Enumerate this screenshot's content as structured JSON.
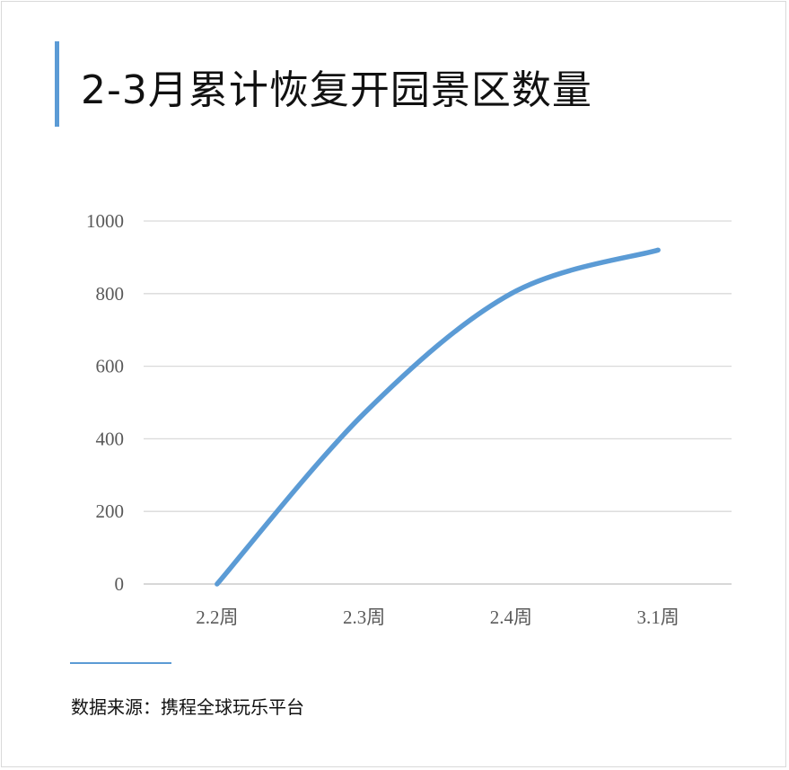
{
  "title": "2-3月累计恢复开园景区数量",
  "source": "数据来源：携程全球玩乐平台",
  "colors": {
    "accent": "#5b9bd5",
    "grid": "#d9d9d9",
    "tick": "#595959"
  },
  "chart_data": {
    "type": "line",
    "categories": [
      "2.2周",
      "2.3周",
      "2.4周",
      "3.1周"
    ],
    "series": [
      {
        "values": [
          0,
          470,
          800,
          920
        ]
      }
    ],
    "ylim": [
      0,
      1000
    ],
    "yticks": [
      0,
      200,
      400,
      600,
      800,
      1000
    ],
    "grid": true,
    "smooth": true,
    "legend": "none"
  }
}
